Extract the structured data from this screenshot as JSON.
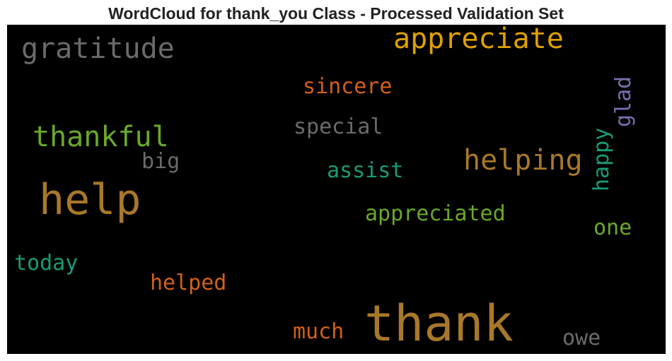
{
  "title": "WordCloud for thank_you Class - Processed Validation Set",
  "palette": {
    "background": "#000000",
    "gold": "#a8782a",
    "amber": "#e0a000",
    "green": "#6aa82a",
    "teal": "#1a9a78",
    "orange": "#d2601a",
    "gray": "#6b6b6b",
    "lavender": "#7a70b0"
  },
  "words": [
    {
      "text": "thank",
      "color": "#a8782a"
    },
    {
      "text": "help",
      "color": "#a8782a"
    },
    {
      "text": "appreciate",
      "color": "#e0a000"
    },
    {
      "text": "gratitude",
      "color": "#6b6b6b"
    },
    {
      "text": "thankful",
      "color": "#6aa82a"
    },
    {
      "text": "helping",
      "color": "#a8782a"
    },
    {
      "text": "appreciated",
      "color": "#6aa82a"
    },
    {
      "text": "sincere",
      "color": "#d2601a"
    },
    {
      "text": "special",
      "color": "#6b6b6b"
    },
    {
      "text": "assist",
      "color": "#1a9a78"
    },
    {
      "text": "big",
      "color": "#6b6b6b"
    },
    {
      "text": "happy",
      "color": "#1a9a78"
    },
    {
      "text": "glad",
      "color": "#7a70b0"
    },
    {
      "text": "one",
      "color": "#6aa82a"
    },
    {
      "text": "today",
      "color": "#1a9a78"
    },
    {
      "text": "helped",
      "color": "#d2601a"
    },
    {
      "text": "much",
      "color": "#d2601a"
    },
    {
      "text": "owe",
      "color": "#6b6b6b"
    }
  ]
}
